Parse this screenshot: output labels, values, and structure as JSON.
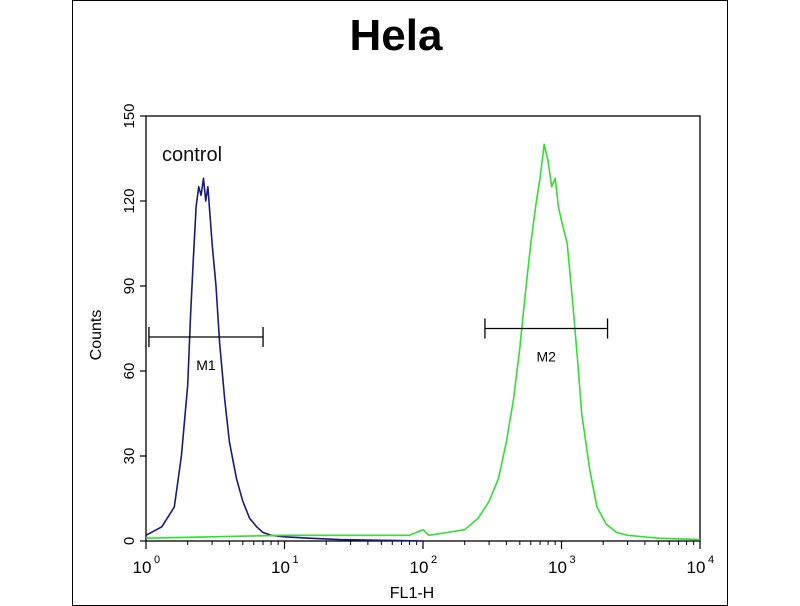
{
  "chart_data": {
    "type": "line",
    "title": "Hela",
    "xlabel": "FL1-H",
    "ylabel": "Counts",
    "x_scale": "log",
    "xlim": [
      1,
      10000
    ],
    "ylim": [
      0,
      150
    ],
    "x_ticks": [
      {
        "base": "10",
        "exp": "0"
      },
      {
        "base": "10",
        "exp": "1"
      },
      {
        "base": "10",
        "exp": "2"
      },
      {
        "base": "10",
        "exp": "3"
      },
      {
        "base": "10",
        "exp": "4"
      }
    ],
    "y_ticks": [
      "0",
      "30",
      "60",
      "90",
      "120",
      "150"
    ],
    "annotation": "control",
    "series": [
      {
        "color": "#1a1a7a",
        "x": [
          1.0,
          1.3,
          1.6,
          1.8,
          2.0,
          2.1,
          2.2,
          2.3,
          2.4,
          2.5,
          2.6,
          2.7,
          2.8,
          2.9,
          3.0,
          3.2,
          3.4,
          3.7,
          4.0,
          4.5,
          5.0,
          5.6,
          6.3,
          7.0,
          8.0,
          10,
          15,
          25,
          40,
          60,
          100
        ],
        "y": [
          2,
          5,
          12,
          30,
          55,
          80,
          100,
          118,
          125,
          122,
          128,
          120,
          125,
          115,
          105,
          90,
          70,
          50,
          35,
          22,
          14,
          8,
          5,
          3,
          2,
          1.5,
          1,
          0.5,
          0.3,
          0.2,
          0
        ]
      },
      {
        "color": "#33dd33",
        "x": [
          1.0,
          3.0,
          10,
          30,
          80,
          100,
          110,
          150,
          200,
          250,
          300,
          350,
          400,
          450,
          500,
          550,
          600,
          650,
          700,
          750,
          800,
          850,
          900,
          950,
          1000,
          1100,
          1200,
          1300,
          1400,
          1600,
          1800,
          2100,
          2500,
          3000,
          5000,
          10000
        ],
        "y": [
          1,
          1.5,
          2,
          2,
          2,
          4,
          2,
          3,
          4,
          8,
          14,
          22,
          35,
          50,
          68,
          88,
          105,
          118,
          128,
          140,
          134,
          125,
          128,
          118,
          113,
          105,
          85,
          65,
          45,
          25,
          12,
          6,
          3,
          2,
          1,
          0.5
        ]
      }
    ],
    "markers": [
      {
        "label": "M1",
        "x_start": 1.05,
        "x_end": 7.0,
        "y": 72
      },
      {
        "label": "M2",
        "x_start": 280,
        "x_end": 2150,
        "y": 75
      }
    ]
  }
}
